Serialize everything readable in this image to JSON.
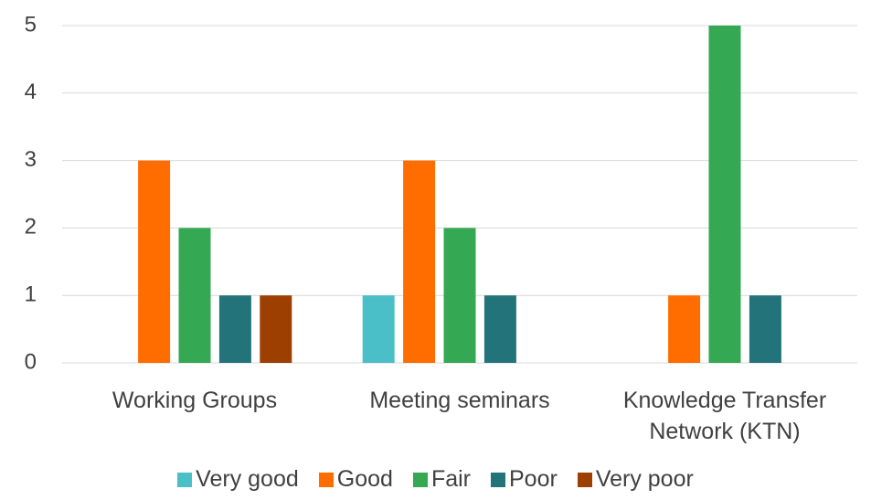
{
  "chart_data": {
    "type": "bar",
    "categories": [
      "Working Groups",
      "Meeting seminars",
      "Knowledge Transfer Network (KTN)"
    ],
    "series": [
      {
        "name": "Very good",
        "color": "#4bbfc8",
        "values": [
          0,
          1,
          0
        ]
      },
      {
        "name": "Good",
        "color": "#ff6d00",
        "values": [
          3,
          3,
          1
        ]
      },
      {
        "name": "Fair",
        "color": "#34a853",
        "values": [
          2,
          2,
          5
        ]
      },
      {
        "name": "Poor",
        "color": "#23737a",
        "values": [
          1,
          1,
          1
        ]
      },
      {
        "name": "Very poor",
        "color": "#9c3f00",
        "values": [
          1,
          0,
          0
        ]
      }
    ],
    "ylim": [
      0,
      5
    ],
    "yticks": [
      0,
      1,
      2,
      3,
      4,
      5
    ],
    "grid": true,
    "legend": "bottom"
  }
}
